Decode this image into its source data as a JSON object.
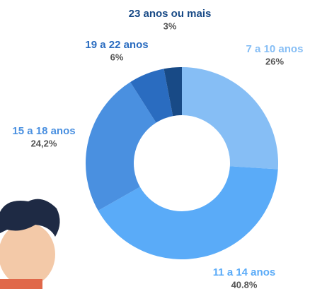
{
  "chart_data": {
    "type": "donut",
    "categories": [
      "7 a 10 anos",
      "11 a 14 anos",
      "15 a 18 anos",
      "19 a 22 anos",
      "23 anos ou mais"
    ],
    "values": [
      26,
      40.8,
      24.2,
      6,
      3
    ],
    "value_labels": [
      "26%",
      "40.8%",
      "24,2%",
      "6%",
      "3%"
    ],
    "colors": [
      "#86bef5",
      "#5aabf8",
      "#4a90e0",
      "#2a6cc0",
      "#184a86"
    ]
  }
}
